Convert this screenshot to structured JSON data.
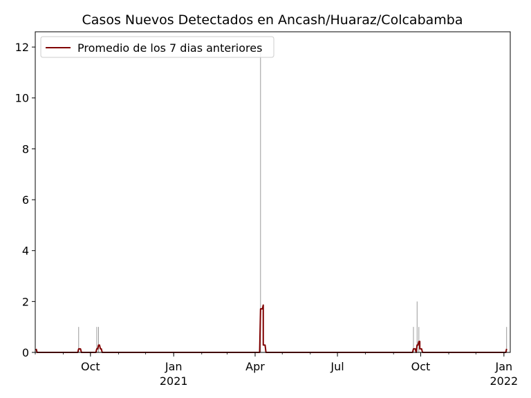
{
  "chart_data": {
    "type": "line",
    "title": "Casos Nuevos Detectados en Ancash/Huaraz/Colcabamba",
    "xlabel": "",
    "ylabel": "",
    "x_range": [
      "2020-08-01",
      "2022-01-08"
    ],
    "ylim": [
      0,
      12.6
    ],
    "yticks": [
      0,
      2,
      4,
      6,
      8,
      10,
      12
    ],
    "xticks": [
      {
        "date": "2020-10-01",
        "label": "Oct",
        "sublabel": ""
      },
      {
        "date": "2021-01-01",
        "label": "Jan",
        "sublabel": "2021"
      },
      {
        "date": "2021-04-01",
        "label": "Apr",
        "sublabel": ""
      },
      {
        "date": "2021-07-01",
        "label": "Jul",
        "sublabel": ""
      },
      {
        "date": "2021-10-01",
        "label": "Oct",
        "sublabel": ""
      },
      {
        "date": "2022-01-01",
        "label": "Jan",
        "sublabel": "2022"
      }
    ],
    "grid": false,
    "legend": {
      "position": "top-left",
      "entries": [
        "Promedio de los 7 dias anteriores"
      ]
    },
    "daily_cases": [
      {
        "date": "2020-09-18",
        "value": 1
      },
      {
        "date": "2020-10-08",
        "value": 1
      },
      {
        "date": "2020-10-10",
        "value": 1
      },
      {
        "date": "2021-04-07",
        "value": 12
      },
      {
        "date": "2021-09-23",
        "value": 1
      },
      {
        "date": "2021-09-27",
        "value": 2
      },
      {
        "date": "2021-09-29",
        "value": 1
      },
      {
        "date": "2022-01-04",
        "value": 1
      }
    ],
    "series": [
      {
        "name": "Promedio de los 7 dias anteriores",
        "color": "#800000",
        "points": [
          {
            "date": "2020-08-02",
            "value": 0.14
          },
          {
            "date": "2020-08-03",
            "value": 0
          },
          {
            "date": "2020-09-17",
            "value": 0
          },
          {
            "date": "2020-09-18",
            "value": 0.14
          },
          {
            "date": "2020-09-20",
            "value": 0.14
          },
          {
            "date": "2020-09-21",
            "value": 0
          },
          {
            "date": "2020-10-07",
            "value": 0
          },
          {
            "date": "2020-10-08",
            "value": 0.14
          },
          {
            "date": "2020-10-09",
            "value": 0.14
          },
          {
            "date": "2020-10-10",
            "value": 0.29
          },
          {
            "date": "2020-10-11",
            "value": 0.29
          },
          {
            "date": "2020-10-12",
            "value": 0.14
          },
          {
            "date": "2020-10-13",
            "value": 0.14
          },
          {
            "date": "2020-10-14",
            "value": 0
          },
          {
            "date": "2021-04-06",
            "value": 0
          },
          {
            "date": "2021-04-07",
            "value": 1.71
          },
          {
            "date": "2021-04-09",
            "value": 1.71
          },
          {
            "date": "2021-04-10",
            "value": 1.86
          },
          {
            "date": "2021-04-10",
            "value": 0.29
          },
          {
            "date": "2021-04-12",
            "value": 0.29
          },
          {
            "date": "2021-04-13",
            "value": 0
          },
          {
            "date": "2021-09-22",
            "value": 0
          },
          {
            "date": "2021-09-23",
            "value": 0.14
          },
          {
            "date": "2021-09-25",
            "value": 0.14
          },
          {
            "date": "2021-09-26",
            "value": 0
          },
          {
            "date": "2021-09-27",
            "value": 0.29
          },
          {
            "date": "2021-09-28",
            "value": 0.29
          },
          {
            "date": "2021-09-29",
            "value": 0.43
          },
          {
            "date": "2021-09-30",
            "value": 0.43
          },
          {
            "date": "2021-09-30",
            "value": 0.14
          },
          {
            "date": "2021-10-02",
            "value": 0.14
          },
          {
            "date": "2021-10-03",
            "value": 0
          },
          {
            "date": "2022-01-03",
            "value": 0
          },
          {
            "date": "2022-01-04",
            "value": 0.14
          }
        ]
      }
    ]
  }
}
